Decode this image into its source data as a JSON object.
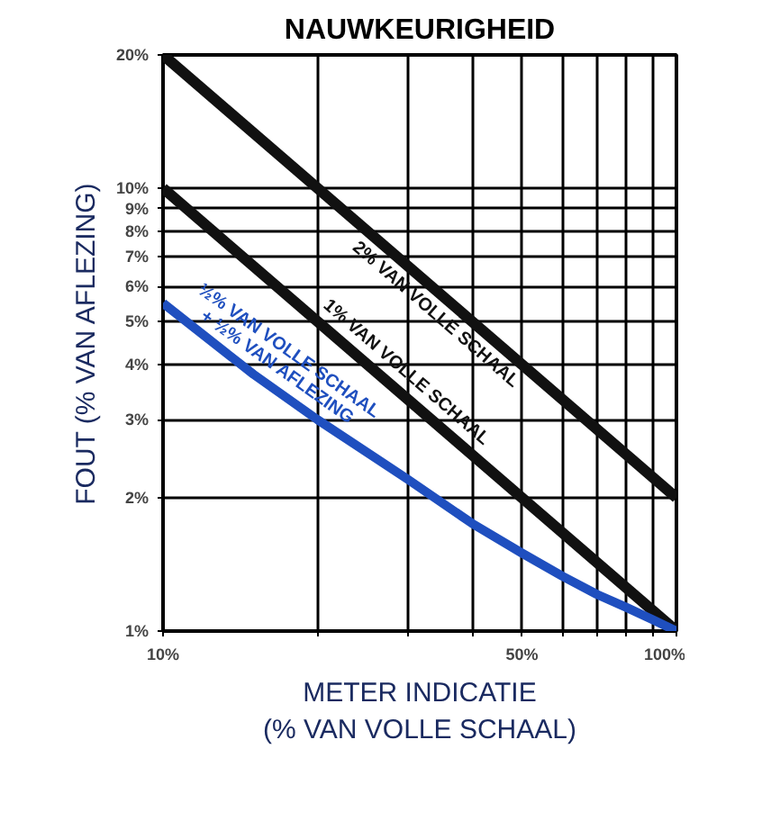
{
  "chart_data": {
    "type": "line",
    "title": "NAUWKEURIGHEID",
    "xlabel": "METER INDICATIE\n(% VAN VOLLE SCHAAL)",
    "ylabel": "FOUT (% VAN AFLEZING)",
    "log": "xy",
    "grid": true,
    "xlim": [
      10,
      100
    ],
    "ylim": [
      1,
      20
    ],
    "xticks": [
      {
        "value": 10,
        "label": "10%"
      },
      {
        "value": 20,
        "label": null
      },
      {
        "value": 30,
        "label": null
      },
      {
        "value": 40,
        "label": null
      },
      {
        "value": 50,
        "label": "50%"
      },
      {
        "value": 60,
        "label": null
      },
      {
        "value": 70,
        "label": null
      },
      {
        "value": 80,
        "label": null
      },
      {
        "value": 90,
        "label": null
      },
      {
        "value": 100,
        "label": "100%"
      }
    ],
    "yticks": [
      {
        "value": 1,
        "label": "1%"
      },
      {
        "value": 2,
        "label": "2%"
      },
      {
        "value": 3,
        "label": "3%"
      },
      {
        "value": 4,
        "label": "4%"
      },
      {
        "value": 5,
        "label": "5%"
      },
      {
        "value": 6,
        "label": "6%"
      },
      {
        "value": 7,
        "label": "7%"
      },
      {
        "value": 8,
        "label": "8%"
      },
      {
        "value": 9,
        "label": "9%"
      },
      {
        "value": 10,
        "label": "10%"
      },
      {
        "value": 20,
        "label": "20%"
      }
    ],
    "series": [
      {
        "name": "2% VAN VOLLE SCHAAL",
        "color": "#111111",
        "x": [
          10,
          100
        ],
        "values": [
          20,
          2
        ]
      },
      {
        "name": "1% VAN VOLLE SCHAAL",
        "color": "#111111",
        "x": [
          10,
          100
        ],
        "values": [
          10,
          1
        ]
      },
      {
        "name": "½% VAN VOLLE SCHAAL\n+ ½% VAN AFLEZING",
        "color": "#1f4fbf",
        "x": [
          10,
          15,
          20,
          30,
          40,
          50,
          60,
          70,
          80,
          90,
          100
        ],
        "values": [
          5.5,
          3.8,
          3.0,
          2.2,
          1.75,
          1.5,
          1.33,
          1.21,
          1.13,
          1.06,
          1.0
        ]
      }
    ]
  }
}
